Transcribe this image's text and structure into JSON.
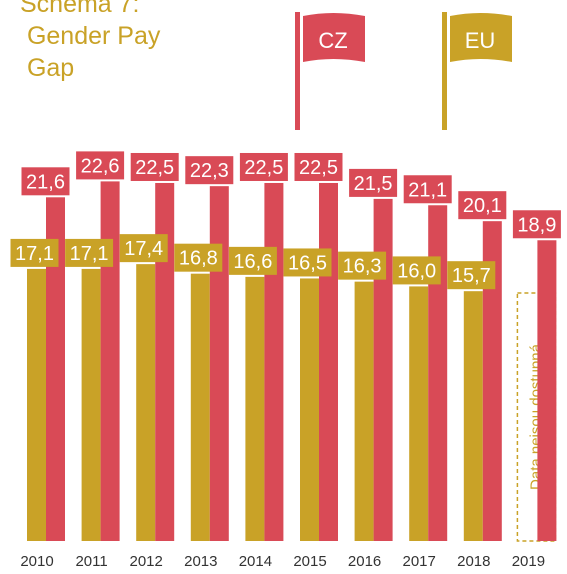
{
  "chart_data": {
    "type": "bar",
    "title": "Schéma 7: Gender Pay Gap",
    "annotation": "Data nejsou dostupná",
    "categories": [
      "2010",
      "2011",
      "2012",
      "2013",
      "2014",
      "2015",
      "2016",
      "2017",
      "2018",
      "2019"
    ],
    "series": [
      {
        "name": "EU",
        "color": "#c9a227",
        "values": [
          17.1,
          17.1,
          17.4,
          16.8,
          16.6,
          16.5,
          16.3,
          16.0,
          15.7,
          null
        ],
        "value_labels": [
          "17,1",
          "17,1",
          "17,4",
          "16,8",
          "16,6",
          "16,5",
          "16,3",
          "16,0",
          "15,7",
          null
        ]
      },
      {
        "name": "CZ",
        "color": "#d94a56",
        "values": [
          21.6,
          22.6,
          22.5,
          22.3,
          22.5,
          22.5,
          21.5,
          21.1,
          20.1,
          18.9
        ],
        "value_labels": [
          "21,6",
          "22,6",
          "22,5",
          "22,3",
          "22,5",
          "22,5",
          "21,5",
          "21,1",
          "20,1",
          "18,9"
        ]
      }
    ],
    "ylim": [
      0,
      34
    ]
  }
}
